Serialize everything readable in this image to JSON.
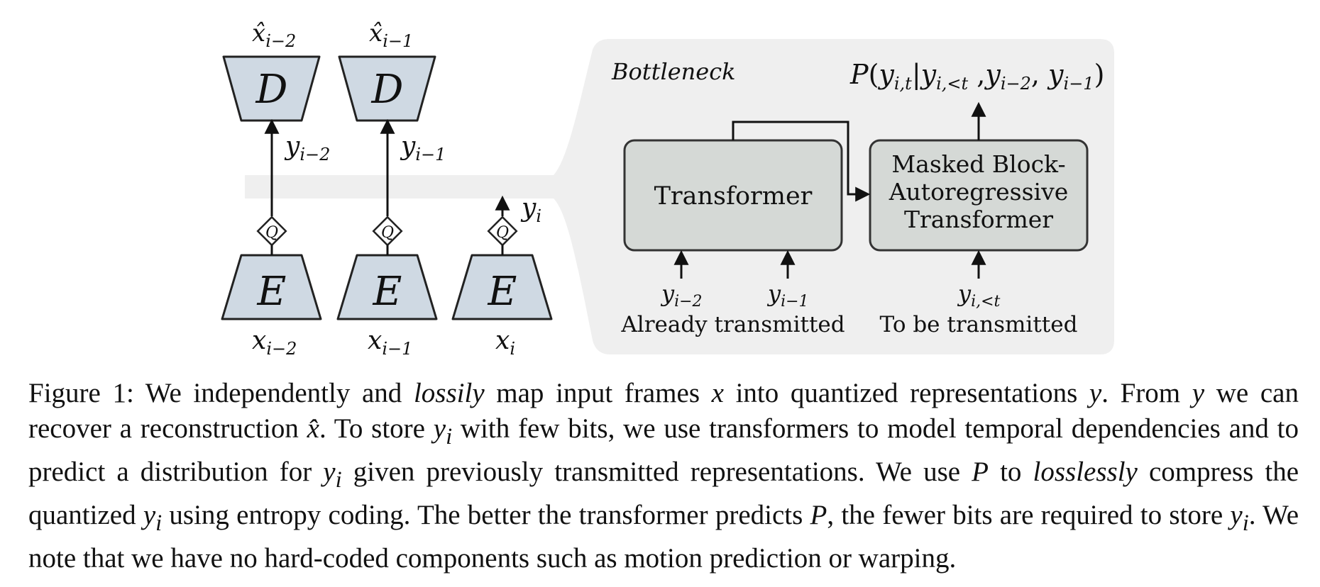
{
  "figure": {
    "bottleneck_label": "Bottleneck",
    "decoder_letter": "D",
    "encoder_letter": "E",
    "quantizer_letter": "Q",
    "decoder_outputs": [
      "x̂",
      "x̂"
    ],
    "decoder_output_subs": [
      "i−2",
      "i−1"
    ],
    "y_symbol": "y",
    "x_symbol": "x",
    "latent_subs": [
      "i−2",
      "i−1",
      "i"
    ],
    "input_subs": [
      "i−2",
      "i−1",
      "i"
    ],
    "transformer_label": "Transformer",
    "masked_transformer_lines": [
      "Masked Block-",
      "Autoregressive",
      "Transformer"
    ],
    "already_transmitted_label": "Already transmitted",
    "to_be_transmitted_label": "To be transmitted",
    "bottleneck_inputs": [
      "i−2",
      "i−1"
    ],
    "masked_input_sub": "i,<t",
    "output_prob": {
      "P": "P",
      "open": "(",
      "target_sub": "i,t",
      "cond_sub": "i,<t",
      "prev_subs": [
        "i−2",
        "i−1"
      ],
      "close": ")"
    }
  },
  "caption": {
    "figure_label": "Figure 1:",
    "s1_a": " We independently and ",
    "s1_lossily": "lossily",
    "s1_b": " map input frames ",
    "s1_x": "x",
    "s1_c": " into quantized representations ",
    "s1_y": "y",
    "s1_d": ". From ",
    "s1_y2": "y",
    "s2_a": " we can recover a reconstruction ",
    "s2_xhat": "x̂",
    "s2_b": ". To store ",
    "s2_yi": "y",
    "s2_c": " with few bits, we use transformers to model temporal dependencies and to predict a distribution for ",
    "s2_yi2": "y",
    "s2_d": " given previously transmitted representations. We use ",
    "s3_P": "P",
    "s3_a": " to ",
    "s3_losslessly": "losslessly",
    "s3_b": " compress the quantized ",
    "s3_yi": "y",
    "s3_c": " using entropy coding. The better the transformer predicts ",
    "s4_P": "P",
    "s4_a": ", the fewer bits are required to store ",
    "s4_yi": "y",
    "s4_b": ". We note that we have no hard-coded components such as motion prediction or warping.",
    "sub_i": "i"
  },
  "colors": {
    "coder_fill": "#cfd9e3",
    "transformer_fill": "#d5d9d6",
    "bottleneck_bg": "#efefef",
    "stroke": "#222222"
  }
}
